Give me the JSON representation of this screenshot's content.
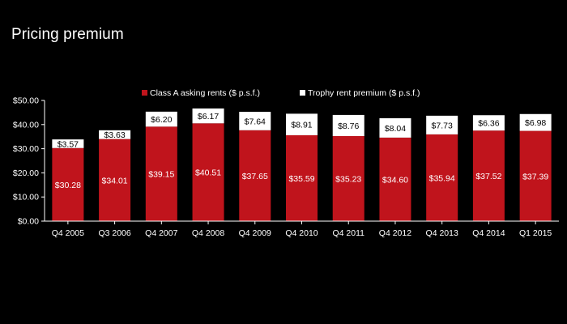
{
  "page": {
    "title": "Pricing premium"
  },
  "colors": {
    "background": "#000000",
    "class_a": "#c0141c",
    "trophy": "#ffffff",
    "text": "#ffffff",
    "trophy_label": "#000000"
  },
  "chart_data": {
    "type": "bar",
    "stacked": true,
    "title": "",
    "xlabel": "",
    "ylabel": "",
    "ylim": [
      0,
      50
    ],
    "yticks": [
      0,
      10,
      20,
      30,
      40,
      50
    ],
    "ytick_labels": [
      "$0.00",
      "$10.00",
      "$20.00",
      "$30.00",
      "$40.00",
      "$50.00"
    ],
    "grid": false,
    "legend": "top-center",
    "categories": [
      "Q4 2005",
      "Q3 2006",
      "Q4 2007",
      "Q4 2008",
      "Q4 2009",
      "Q4 2010",
      "Q4 2011",
      "Q4 2012",
      "Q4 2013",
      "Q4 2014",
      "Q1 2015"
    ],
    "series": [
      {
        "name": "Class A asking rents ($ p.s.f.)",
        "color": "#c0141c",
        "values": [
          30.28,
          34.01,
          39.15,
          40.51,
          37.65,
          35.59,
          35.23,
          34.6,
          35.94,
          37.52,
          37.39
        ],
        "labels": [
          "$30.28",
          "$34.01",
          "$39.15",
          "$40.51",
          "$37.65",
          "$35.59",
          "$35.23",
          "$34.60",
          "$35.94",
          "$37.52",
          "$37.39"
        ]
      },
      {
        "name": "Trophy rent premium ($ p.s.f.)",
        "color": "#ffffff",
        "values": [
          3.57,
          3.63,
          6.2,
          6.17,
          7.64,
          8.91,
          8.76,
          8.04,
          7.73,
          6.36,
          6.98
        ],
        "labels": [
          "$3.57",
          "$3.63",
          "$6.20",
          "$6.17",
          "$7.64",
          "$8.91",
          "$8.76",
          "$8.04",
          "$7.73",
          "$6.36",
          "$6.98"
        ]
      }
    ]
  }
}
